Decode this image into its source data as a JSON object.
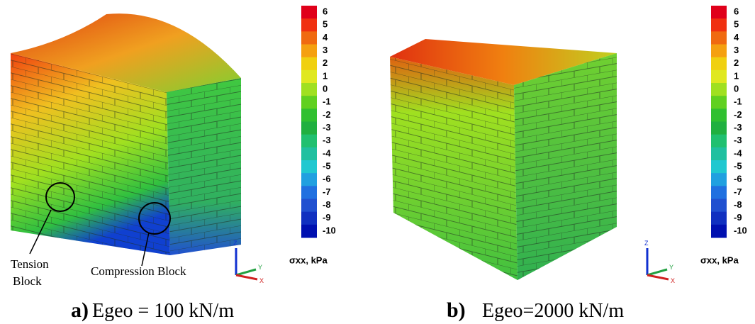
{
  "colorbar_colors": [
    "#e0001a",
    "#f03010",
    "#f06a10",
    "#f5a010",
    "#f0d010",
    "#e0e820",
    "#a0e020",
    "#60d020",
    "#30c030",
    "#20b040",
    "#20c070",
    "#20c0a0",
    "#20c8d0",
    "#20a0e0",
    "#2070e0",
    "#2050d0",
    "#1030c0",
    "#0010b0"
  ],
  "panels": [
    {
      "letter": "a)",
      "caption": "Egeo = 100 kN/m",
      "colorbar_title": "σxx, kPa",
      "colorbar_labels": [
        "6",
        "5",
        "4",
        "3",
        "2",
        "1",
        "0",
        "-1",
        "-2",
        "-3",
        "-3",
        "-4",
        "-5",
        "-6",
        "-7",
        "-8",
        "-9",
        "-10"
      ],
      "annotations": [
        "Tension",
        "Block",
        "Compression Block"
      ],
      "axes": [
        "Z",
        "Y",
        "X"
      ]
    },
    {
      "letter": "b)",
      "caption": "Egeo=2000 kN/m",
      "colorbar_title": "σxx, kPa",
      "colorbar_labels": [
        "6",
        "5",
        "4",
        "3",
        "2",
        "1",
        "0",
        "-1",
        "-2",
        "-3",
        "-3",
        "-4",
        "-5",
        "-6",
        "-7",
        "-8",
        "-9",
        "-10"
      ],
      "axes": [
        "Z",
        "Y",
        "X"
      ]
    }
  ]
}
